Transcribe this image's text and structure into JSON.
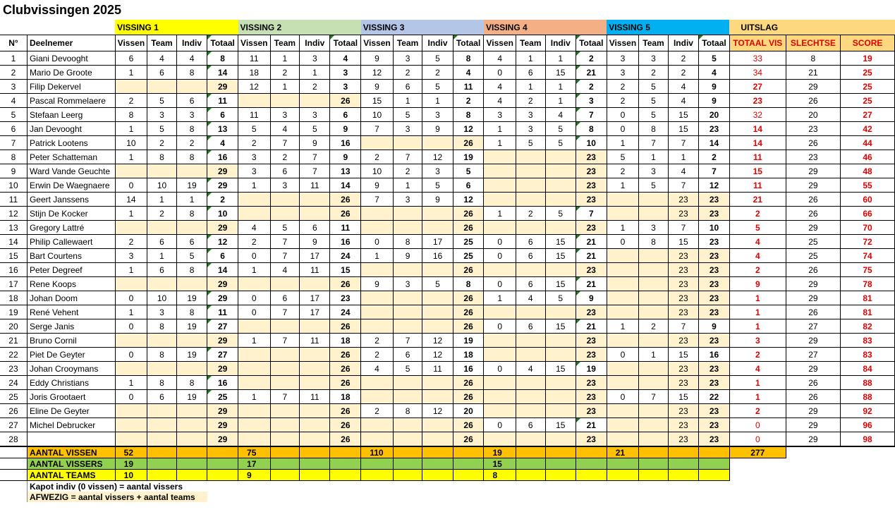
{
  "title": "Clubvissingen 2025",
  "colors": {
    "vissing_1": "#ffff00",
    "vissing_2": "#c6e0b4",
    "vissing_3": "#b4c6e7",
    "vissing_4": "#f4b084",
    "vissing_5": "#00b0f0",
    "uitslag": "#fdd87e",
    "absent": "#fff2cc",
    "aantal_vissen": "#ffc000",
    "aantal_vissers": "#92d050",
    "aantal_teams": "#ffff00",
    "uitslag_headers": "#e00000"
  },
  "groups": [
    "VISSING 1",
    "VISSING 2",
    "VISSING 3",
    "VISSING 4",
    "VISSING 5",
    "UITSLAG"
  ],
  "headers": {
    "nr": "N°",
    "name": "Deelnemer",
    "sub": [
      "Vissen",
      "Team",
      "Indiv",
      "Totaal"
    ],
    "uitslag": [
      "TOTAAL VIS",
      "SLECHTSE",
      "SCORE"
    ]
  },
  "rows": [
    {
      "nr": "1",
      "name": "Giani Devooght",
      "v": [
        [
          "6",
          "4",
          "4",
          "8"
        ],
        [
          "11",
          "1",
          "3",
          "4"
        ],
        [
          "9",
          "3",
          "5",
          "8"
        ],
        [
          "4",
          "1",
          "1",
          "2"
        ],
        [
          "3",
          "3",
          "2",
          "5"
        ]
      ],
      "res": [
        "33",
        "8",
        "19"
      ]
    },
    {
      "nr": "2",
      "name": "Mario De Groote",
      "v": [
        [
          "1",
          "6",
          "8",
          "14"
        ],
        [
          "18",
          "2",
          "1",
          "3"
        ],
        [
          "12",
          "2",
          "2",
          "4"
        ],
        [
          "0",
          "6",
          "15",
          "21"
        ],
        [
          "3",
          "2",
          "2",
          "4"
        ]
      ],
      "res": [
        "34",
        "21",
        "25"
      ]
    },
    {
      "nr": "3",
      "name": "Filip Dekervel",
      "v": [
        [
          "",
          "",
          "",
          "29"
        ],
        [
          "12",
          "1",
          "2",
          "3"
        ],
        [
          "9",
          "6",
          "5",
          "11"
        ],
        [
          "4",
          "1",
          "1",
          "2"
        ],
        [
          "2",
          "5",
          "4",
          "9"
        ]
      ],
      "res": [
        "27",
        "29",
        "25"
      ]
    },
    {
      "nr": "4",
      "name": "Pascal Rommelaere",
      "v": [
        [
          "2",
          "5",
          "6",
          "11"
        ],
        [
          "",
          "",
          "",
          "26"
        ],
        [
          "15",
          "1",
          "1",
          "2"
        ],
        [
          "4",
          "2",
          "1",
          "3"
        ],
        [
          "2",
          "5",
          "4",
          "9"
        ]
      ],
      "res": [
        "23",
        "26",
        "25"
      ]
    },
    {
      "nr": "5",
      "name": "Stefaan Leerg",
      "v": [
        [
          "8",
          "3",
          "3",
          "6"
        ],
        [
          "11",
          "3",
          "3",
          "6"
        ],
        [
          "10",
          "5",
          "3",
          "8"
        ],
        [
          "3",
          "3",
          "4",
          "7"
        ],
        [
          "0",
          "5",
          "15",
          "20"
        ]
      ],
      "res": [
        "32",
        "20",
        "27"
      ]
    },
    {
      "nr": "6",
      "name": "Jan Devooght",
      "v": [
        [
          "1",
          "5",
          "8",
          "13"
        ],
        [
          "5",
          "4",
          "5",
          "9"
        ],
        [
          "7",
          "3",
          "9",
          "12"
        ],
        [
          "1",
          "3",
          "5",
          "8"
        ],
        [
          "0",
          "8",
          "15",
          "23"
        ]
      ],
      "res": [
        "14",
        "23",
        "42"
      ]
    },
    {
      "nr": "7",
      "name": "Patrick Lootens",
      "v": [
        [
          "10",
          "2",
          "2",
          "4"
        ],
        [
          "2",
          "7",
          "9",
          "16"
        ],
        [
          "",
          "",
          "",
          "26"
        ],
        [
          "1",
          "5",
          "5",
          "10"
        ],
        [
          "1",
          "7",
          "7",
          "14"
        ]
      ],
      "res": [
        "14",
        "26",
        "44"
      ]
    },
    {
      "nr": "8",
      "name": "Peter Schatteman",
      "v": [
        [
          "1",
          "8",
          "8",
          "16"
        ],
        [
          "3",
          "2",
          "7",
          "9"
        ],
        [
          "2",
          "7",
          "12",
          "19"
        ],
        [
          "",
          "",
          "",
          "23"
        ],
        [
          "5",
          "1",
          "1",
          "2"
        ]
      ],
      "res": [
        "11",
        "23",
        "46"
      ]
    },
    {
      "nr": "9",
      "name": "Ward Vande Geuchte",
      "v": [
        [
          "",
          "",
          "",
          "29"
        ],
        [
          "3",
          "6",
          "7",
          "13"
        ],
        [
          "10",
          "2",
          "3",
          "5"
        ],
        [
          "",
          "",
          "",
          "23"
        ],
        [
          "2",
          "3",
          "4",
          "7"
        ]
      ],
      "res": [
        "15",
        "29",
        "48"
      ]
    },
    {
      "nr": "10",
      "name": "Erwin De Waegnaere",
      "v": [
        [
          "0",
          "10",
          "19",
          "29"
        ],
        [
          "1",
          "3",
          "11",
          "14"
        ],
        [
          "9",
          "1",
          "5",
          "6"
        ],
        [
          "",
          "",
          "",
          "23"
        ],
        [
          "1",
          "5",
          "7",
          "12"
        ]
      ],
      "res": [
        "11",
        "29",
        "55"
      ]
    },
    {
      "nr": "11",
      "name": "Geert Janssens",
      "v": [
        [
          "14",
          "1",
          "1",
          "2"
        ],
        [
          "",
          "",
          "",
          "26"
        ],
        [
          "7",
          "3",
          "9",
          "12"
        ],
        [
          "",
          "",
          "",
          "23"
        ],
        [
          "",
          "",
          "23",
          "23"
        ]
      ],
      "res": [
        "21",
        "26",
        "60"
      ]
    },
    {
      "nr": "12",
      "name": "Stijn De Kocker",
      "v": [
        [
          "1",
          "2",
          "8",
          "10"
        ],
        [
          "",
          "",
          "",
          "26"
        ],
        [
          "",
          "",
          "",
          "26"
        ],
        [
          "1",
          "2",
          "5",
          "7"
        ],
        [
          "",
          "",
          "23",
          "23"
        ]
      ],
      "res": [
        "2",
        "26",
        "66"
      ]
    },
    {
      "nr": "13",
      "name": "Gregory Lattré",
      "v": [
        [
          "",
          "",
          "",
          "29"
        ],
        [
          "4",
          "5",
          "6",
          "11"
        ],
        [
          "",
          "",
          "",
          "26"
        ],
        [
          "",
          "",
          "",
          "23"
        ],
        [
          "1",
          "3",
          "7",
          "10"
        ]
      ],
      "res": [
        "5",
        "29",
        "70"
      ]
    },
    {
      "nr": "14",
      "name": "Philip Callewaert",
      "v": [
        [
          "2",
          "6",
          "6",
          "12"
        ],
        [
          "2",
          "7",
          "9",
          "16"
        ],
        [
          "0",
          "8",
          "17",
          "25"
        ],
        [
          "0",
          "6",
          "15",
          "21"
        ],
        [
          "0",
          "8",
          "15",
          "23"
        ]
      ],
      "res": [
        "4",
        "25",
        "72"
      ]
    },
    {
      "nr": "15",
      "name": "Bart Courtens",
      "v": [
        [
          "3",
          "1",
          "5",
          "6"
        ],
        [
          "0",
          "7",
          "17",
          "24"
        ],
        [
          "1",
          "9",
          "16",
          "25"
        ],
        [
          "0",
          "6",
          "15",
          "21"
        ],
        [
          "",
          "",
          "23",
          "23"
        ]
      ],
      "res": [
        "4",
        "25",
        "74"
      ]
    },
    {
      "nr": "16",
      "name": "Peter Degreef",
      "v": [
        [
          "1",
          "6",
          "8",
          "14"
        ],
        [
          "1",
          "4",
          "11",
          "15"
        ],
        [
          "",
          "",
          "",
          "26"
        ],
        [
          "",
          "",
          "",
          "23"
        ],
        [
          "",
          "",
          "23",
          "23"
        ]
      ],
      "res": [
        "2",
        "26",
        "75"
      ]
    },
    {
      "nr": "17",
      "name": "Rene Koops",
      "v": [
        [
          "",
          "",
          "",
          "29"
        ],
        [
          "",
          "",
          "",
          "26"
        ],
        [
          "9",
          "3",
          "5",
          "8"
        ],
        [
          "0",
          "6",
          "15",
          "21"
        ],
        [
          "",
          "",
          "23",
          "23"
        ]
      ],
      "res": [
        "9",
        "29",
        "78"
      ]
    },
    {
      "nr": "18",
      "name": "Johan Doom",
      "v": [
        [
          "0",
          "10",
          "19",
          "29"
        ],
        [
          "0",
          "6",
          "17",
          "23"
        ],
        [
          "",
          "",
          "",
          "26"
        ],
        [
          "1",
          "4",
          "5",
          "9"
        ],
        [
          "",
          "",
          "23",
          "23"
        ]
      ],
      "res": [
        "1",
        "29",
        "81"
      ]
    },
    {
      "nr": "19",
      "name": "René Vehent",
      "v": [
        [
          "1",
          "3",
          "8",
          "11"
        ],
        [
          "0",
          "7",
          "17",
          "24"
        ],
        [
          "",
          "",
          "",
          "26"
        ],
        [
          "",
          "",
          "",
          "23"
        ],
        [
          "",
          "",
          "23",
          "23"
        ]
      ],
      "res": [
        "1",
        "26",
        "81"
      ]
    },
    {
      "nr": "20",
      "name": "Serge Janis",
      "v": [
        [
          "0",
          "8",
          "19",
          "27"
        ],
        [
          "",
          "",
          "",
          "26"
        ],
        [
          "",
          "",
          "",
          "26"
        ],
        [
          "0",
          "6",
          "15",
          "21"
        ],
        [
          "1",
          "2",
          "7",
          "9"
        ]
      ],
      "res": [
        "1",
        "27",
        "82"
      ]
    },
    {
      "nr": "21",
      "name": "Bruno Cornil",
      "v": [
        [
          "",
          "",
          "",
          "29"
        ],
        [
          "1",
          "7",
          "11",
          "18"
        ],
        [
          "2",
          "7",
          "12",
          "19"
        ],
        [
          "",
          "",
          "",
          "23"
        ],
        [
          "",
          "",
          "23",
          "23"
        ]
      ],
      "res": [
        "3",
        "29",
        "83"
      ]
    },
    {
      "nr": "22",
      "name": "Piet De Geyter",
      "v": [
        [
          "0",
          "8",
          "19",
          "27"
        ],
        [
          "",
          "",
          "",
          "26"
        ],
        [
          "2",
          "6",
          "12",
          "18"
        ],
        [
          "",
          "",
          "",
          "23"
        ],
        [
          "0",
          "1",
          "15",
          "16"
        ]
      ],
      "res": [
        "2",
        "27",
        "83"
      ]
    },
    {
      "nr": "23",
      "name": "Johan Crooymans",
      "v": [
        [
          "",
          "",
          "",
          "29"
        ],
        [
          "",
          "",
          "",
          "26"
        ],
        [
          "4",
          "5",
          "11",
          "16"
        ],
        [
          "0",
          "4",
          "15",
          "19"
        ],
        [
          "",
          "",
          "23",
          "23"
        ]
      ],
      "res": [
        "4",
        "29",
        "84"
      ]
    },
    {
      "nr": "24",
      "name": "Eddy Christians",
      "v": [
        [
          "1",
          "8",
          "8",
          "16"
        ],
        [
          "",
          "",
          "",
          "26"
        ],
        [
          "",
          "",
          "",
          "26"
        ],
        [
          "",
          "",
          "",
          "23"
        ],
        [
          "",
          "",
          "23",
          "23"
        ]
      ],
      "res": [
        "1",
        "26",
        "88"
      ]
    },
    {
      "nr": "25",
      "name": "Joris Grootaert",
      "v": [
        [
          "0",
          "6",
          "19",
          "25"
        ],
        [
          "1",
          "7",
          "11",
          "18"
        ],
        [
          "",
          "",
          "",
          "26"
        ],
        [
          "",
          "",
          "",
          "23"
        ],
        [
          "0",
          "7",
          "15",
          "22"
        ]
      ],
      "res": [
        "1",
        "26",
        "88"
      ]
    },
    {
      "nr": "26",
      "name": "Eline De Geyter",
      "v": [
        [
          "",
          "",
          "",
          "29"
        ],
        [
          "",
          "",
          "",
          "26"
        ],
        [
          "2",
          "8",
          "12",
          "20"
        ],
        [
          "",
          "",
          "",
          "23"
        ],
        [
          "",
          "",
          "23",
          "23"
        ]
      ],
      "res": [
        "2",
        "29",
        "92"
      ]
    },
    {
      "nr": "27",
      "name": "Michel Debrucker",
      "v": [
        [
          "",
          "",
          "",
          "29"
        ],
        [
          "",
          "",
          "",
          "26"
        ],
        [
          "",
          "",
          "",
          "26"
        ],
        [
          "0",
          "6",
          "15",
          "21"
        ],
        [
          "",
          "",
          "23",
          "23"
        ]
      ],
      "res": [
        "0",
        "29",
        "96"
      ]
    },
    {
      "nr": "28",
      "name": "",
      "v": [
        [
          "",
          "",
          "",
          "29"
        ],
        [
          "",
          "",
          "",
          "26"
        ],
        [
          "",
          "",
          "",
          "26"
        ],
        [
          "",
          "",
          "",
          "23"
        ],
        [
          "",
          "",
          "23",
          "23"
        ]
      ],
      "res": [
        "0",
        "29",
        "98"
      ]
    }
  ],
  "footer": {
    "aantal_vissen": {
      "label": "AANTAL VISSEN",
      "values": [
        "52",
        "75",
        "110",
        "19",
        "21"
      ],
      "total": "277"
    },
    "aantal_vissers": {
      "label": "AANTAL VISSERS",
      "values": [
        "19",
        "17",
        "",
        "15",
        ""
      ]
    },
    "aantal_teams": {
      "label": "AANTAL TEAMS",
      "values": [
        "10",
        "9",
        "",
        "8",
        ""
      ]
    }
  },
  "notes": [
    "Kapot  indiv (0 vissen) = aantal vissers",
    "AFWEZIG =  aantal vissers + aantal teams"
  ]
}
